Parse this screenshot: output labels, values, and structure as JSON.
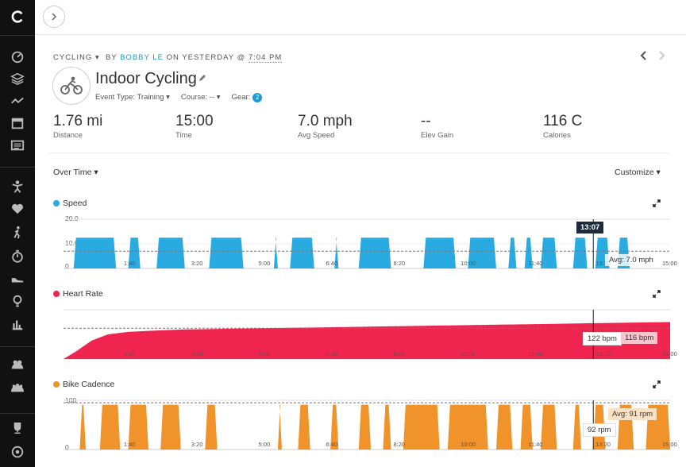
{
  "header": {
    "activity_type": "CYCLING",
    "by": "BY",
    "author": "BOBBY LE",
    "on": "ON YESTERDAY @",
    "time": "7:04 PM",
    "title": "Indoor Cycling",
    "event_type_label": "Event Type: Training",
    "course_label": "Course: --",
    "gear_label": "Gear:",
    "gear_count": "2"
  },
  "stats": [
    {
      "value": "1.76 mi",
      "label": "Distance"
    },
    {
      "value": "15:00",
      "label": "Time"
    },
    {
      "value": "7.0 mph",
      "label": "Avg Speed"
    },
    {
      "value": "--",
      "label": "Elev Gain"
    },
    {
      "value": "116 C",
      "label": "Calories"
    }
  ],
  "controls": {
    "over_time": "Over Time",
    "customize": "Customize"
  },
  "colors": {
    "speed": "#29abe2",
    "heart_rate": "#f0254f",
    "cadence": "#f0932b",
    "sidebar_bg": "#111111",
    "accent": "#1a9bd7"
  },
  "icons": [
    "chevron-right-icon",
    "dashboard-icon",
    "layers-icon",
    "activity-line-icon",
    "calendar-icon",
    "news-icon",
    "person-icon",
    "heart-icon",
    "walk-icon",
    "stopwatch-icon",
    "shoe-icon",
    "lightbulb-icon",
    "bar-chart-icon",
    "group-icon",
    "groups-icon",
    "trophy-icon",
    "target-icon",
    "bike-icon",
    "pencil-icon",
    "expand-icon"
  ],
  "charts": {
    "speed": {
      "title": "Speed",
      "y_ticks": [
        "20.0",
        "10.0",
        "0"
      ],
      "tooltip_time": "13:07",
      "avg_label": "Avg: 7.0 mph"
    },
    "heart_rate": {
      "title": "Heart Rate",
      "tooltip": "122 bpm",
      "avg_label": "116 bpm"
    },
    "cadence": {
      "title": "Bike Cadence",
      "y_ticks": [
        "100",
        "0"
      ],
      "tooltip": "92 rpm",
      "avg_label": "Avg: 91 rpm"
    }
  },
  "chart_data": [
    {
      "type": "area",
      "title": "Speed",
      "ylabel": "",
      "ylim": [
        0,
        20
      ],
      "x_ticks": [
        "1:40",
        "3:20",
        "5:00",
        "6:40",
        "8:20",
        "10:00",
        "11:40",
        "13:20",
        "15:00"
      ],
      "avg": 7.0,
      "segments": [
        {
          "start": 0.25,
          "end": 1.3,
          "value": 12.5
        },
        {
          "start": 1.6,
          "end": 1.9,
          "value": 12.5
        },
        {
          "start": 2.3,
          "end": 3.0,
          "value": 12.5
        },
        {
          "start": 3.6,
          "end": 4.45,
          "value": 12.5
        },
        {
          "start": 5.2,
          "end": 5.3,
          "value": 12.5
        },
        {
          "start": 5.6,
          "end": 6.2,
          "value": 12.5
        },
        {
          "start": 6.7,
          "end": 6.8,
          "value": 12.5
        },
        {
          "start": 7.3,
          "end": 8.1,
          "value": 12.5
        },
        {
          "start": 8.9,
          "end": 9.7,
          "value": 12.5
        },
        {
          "start": 10.0,
          "end": 10.7,
          "value": 12.5
        },
        {
          "start": 11.0,
          "end": 11.2,
          "value": 12.5
        },
        {
          "start": 11.4,
          "end": 11.6,
          "value": 12.5
        },
        {
          "start": 11.8,
          "end": 12.2,
          "value": 12.5
        },
        {
          "start": 12.6,
          "end": 12.95,
          "value": 12.5
        },
        {
          "start": 13.15,
          "end": 13.5,
          "value": 12.5
        },
        {
          "start": 13.7,
          "end": 14.0,
          "value": 12.5
        }
      ]
    },
    {
      "type": "area",
      "title": "Heart Rate",
      "x_ticks": [
        "1:40",
        "3:20",
        "5:00",
        "6:40",
        "8:20",
        "10:00",
        "11:40",
        "13:20",
        "15:00"
      ],
      "avg": 116,
      "ylim": [
        60,
        140
      ],
      "x": [
        0,
        0.3,
        0.7,
        1.1,
        1.6,
        2.2,
        3.0,
        4.0,
        5.0,
        6.0,
        7.0,
        8.0,
        9.0,
        10.0,
        11.0,
        12.0,
        13.0,
        14.0,
        15.0
      ],
      "y": [
        60,
        72,
        90,
        100,
        104,
        106,
        108,
        109,
        110,
        111,
        112,
        113,
        114,
        115,
        116,
        117,
        118,
        119,
        120
      ]
    },
    {
      "type": "area",
      "title": "Bike Cadence",
      "ylim": [
        0,
        100
      ],
      "x_ticks": [
        "1:40",
        "3:20",
        "5:00",
        "6:40",
        "8:20",
        "10:00",
        "11:40",
        "13:20",
        "15:00"
      ],
      "avg": 91,
      "segments": [
        {
          "start": 0.4,
          "end": 0.55,
          "value": 91
        },
        {
          "start": 0.9,
          "end": 1.4,
          "value": 91
        },
        {
          "start": 1.6,
          "end": 2.1,
          "value": 91
        },
        {
          "start": 2.4,
          "end": 2.9,
          "value": 91
        },
        {
          "start": 3.5,
          "end": 3.8,
          "value": 91
        },
        {
          "start": 5.3,
          "end": 5.4,
          "value": 91
        },
        {
          "start": 5.8,
          "end": 6.1,
          "value": 91
        },
        {
          "start": 6.6,
          "end": 6.8,
          "value": 91
        },
        {
          "start": 7.3,
          "end": 7.6,
          "value": 91
        },
        {
          "start": 7.9,
          "end": 8.1,
          "value": 91
        },
        {
          "start": 8.4,
          "end": 9.3,
          "value": 91
        },
        {
          "start": 9.5,
          "end": 10.5,
          "value": 91
        },
        {
          "start": 10.7,
          "end": 11.1,
          "value": 91
        },
        {
          "start": 11.3,
          "end": 11.6,
          "value": 91
        },
        {
          "start": 11.8,
          "end": 12.2,
          "value": 91
        },
        {
          "start": 12.6,
          "end": 12.8,
          "value": 91
        },
        {
          "start": 13.1,
          "end": 13.4,
          "value": 91
        },
        {
          "start": 13.7,
          "end": 14.1,
          "value": 91
        },
        {
          "start": 14.4,
          "end": 15.0,
          "value": 91
        }
      ]
    }
  ]
}
